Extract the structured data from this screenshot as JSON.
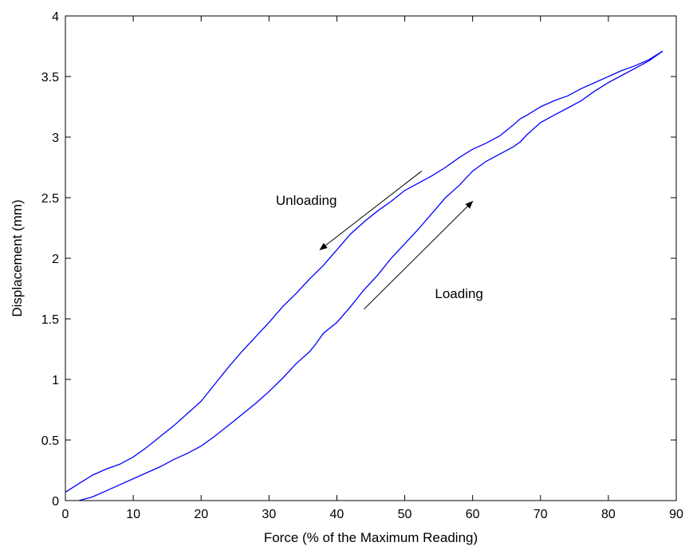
{
  "chart_data": {
    "type": "line",
    "title": "",
    "xlabel": "Force (% of the Maximum Reading)",
    "ylabel": "Displacement (mm)",
    "xlim": [
      0,
      90
    ],
    "ylim": [
      0,
      4
    ],
    "xticks": [
      0,
      10,
      20,
      30,
      40,
      50,
      60,
      70,
      80,
      90
    ],
    "yticks": [
      0,
      0.5,
      1,
      1.5,
      2,
      2.5,
      3,
      3.5,
      4
    ],
    "xtick_labels": [
      "0",
      "10",
      "20",
      "30",
      "40",
      "50",
      "60",
      "70",
      "80",
      "90"
    ],
    "ytick_labels": [
      "0",
      "0.5",
      "1",
      "1.5",
      "2",
      "2.5",
      "3",
      "3.5",
      "4"
    ],
    "grid": false,
    "line_color": "#0000ff",
    "series": [
      {
        "x": [
          2,
          4,
          6,
          8,
          10,
          12,
          14,
          16,
          18,
          20,
          22,
          24,
          26,
          28,
          30,
          32,
          34,
          36,
          37,
          38,
          40,
          42,
          44,
          46,
          48,
          50,
          52,
          54,
          56,
          58,
          60,
          62,
          64,
          66,
          67,
          68,
          70,
          72,
          74,
          76,
          78,
          80,
          82,
          84,
          86,
          88
        ],
        "values": [
          0.0,
          0.03,
          0.08,
          0.13,
          0.18,
          0.23,
          0.28,
          0.34,
          0.39,
          0.45,
          0.53,
          0.62,
          0.71,
          0.8,
          0.9,
          1.01,
          1.13,
          1.23,
          1.3,
          1.38,
          1.47,
          1.6,
          1.74,
          1.86,
          2.0,
          2.12,
          2.24,
          2.37,
          2.5,
          2.6,
          2.72,
          2.8,
          2.86,
          2.92,
          2.96,
          3.02,
          3.12,
          3.18,
          3.24,
          3.3,
          3.38,
          3.45,
          3.51,
          3.57,
          3.63,
          3.71
        ]
      },
      {
        "x": [
          88,
          86,
          84,
          82,
          80,
          78,
          76,
          74,
          72,
          70,
          68,
          67,
          66,
          64,
          62,
          60,
          58,
          56,
          54,
          52,
          50,
          48,
          46,
          44,
          42,
          40,
          38,
          36,
          34,
          32,
          30,
          28,
          26,
          24,
          22,
          20,
          18,
          16,
          14,
          12,
          10,
          8,
          6,
          4,
          2,
          0
        ],
        "values": [
          3.71,
          3.64,
          3.59,
          3.55,
          3.5,
          3.45,
          3.4,
          3.34,
          3.3,
          3.25,
          3.18,
          3.15,
          3.1,
          3.01,
          2.95,
          2.9,
          2.83,
          2.75,
          2.68,
          2.62,
          2.56,
          2.47,
          2.39,
          2.3,
          2.2,
          2.07,
          1.94,
          1.83,
          1.71,
          1.6,
          1.47,
          1.35,
          1.23,
          1.1,
          0.96,
          0.82,
          0.72,
          0.62,
          0.53,
          0.44,
          0.36,
          0.3,
          0.26,
          0.21,
          0.14,
          0.07
        ]
      }
    ],
    "annotations": [
      {
        "text": "Unloading",
        "x": 35.5,
        "y": 2.44,
        "arrow_from": [
          52.5,
          2.72
        ],
        "arrow_to": [
          37.5,
          2.07
        ]
      },
      {
        "text": "Loading",
        "x": 58,
        "y": 1.67,
        "arrow_from": [
          44,
          1.58
        ],
        "arrow_to": [
          60,
          2.47
        ]
      }
    ]
  }
}
